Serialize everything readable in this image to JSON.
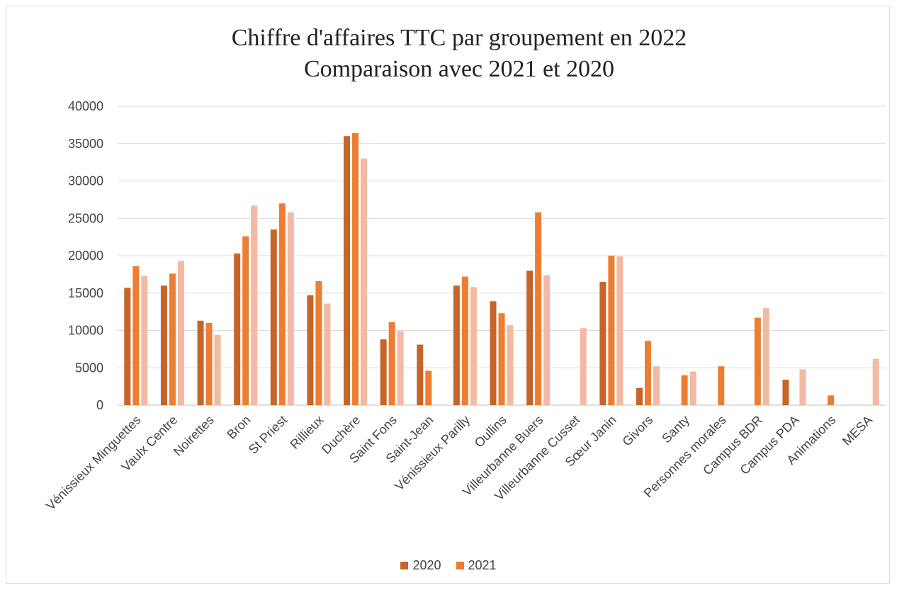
{
  "chart_data": {
    "type": "bar",
    "title_line1": "Chiffre d'affaires TTC par groupement en 2022",
    "title_line2": "Comparaison avec 2021 et 2020",
    "ylim": [
      0,
      40000
    ],
    "yticks": [
      0,
      5000,
      10000,
      15000,
      20000,
      25000,
      30000,
      35000,
      40000
    ],
    "grid": true,
    "legend_position": "bottom",
    "categories": [
      "Vénissieux Minguettes",
      "Vaulx Centre",
      "Noirettes",
      "Bron",
      "St Priest",
      "Rillieux",
      "Duchère",
      "Saint Fons",
      "Saint-Jean",
      "Vénissieux Parilly",
      "Oullins",
      "Villeurbanne Buers",
      "Villeurbanne Cusset",
      "Sœur Janin",
      "Givors",
      "Santy",
      "Personnes morales",
      "Campus BDR",
      "Campus PDA",
      "Animations",
      "MESA"
    ],
    "series": [
      {
        "name": "2020",
        "color": "#C5652A",
        "values": [
          15700,
          16000,
          11300,
          20300,
          23500,
          14700,
          36000,
          8800,
          8100,
          16000,
          13900,
          18000,
          0,
          16500,
          2300,
          0,
          0,
          0,
          3400,
          0,
          0
        ]
      },
      {
        "name": "2021",
        "color": "#ED7D31",
        "values": [
          18600,
          17600,
          11000,
          22600,
          27000,
          16600,
          36400,
          11100,
          4600,
          17200,
          12300,
          25800,
          0,
          20000,
          8600,
          4000,
          5200,
          11700,
          0,
          1300,
          0
        ]
      },
      {
        "name": "",
        "color": "#F4B9A3",
        "values": [
          17300,
          19300,
          9400,
          26700,
          25800,
          13600,
          33000,
          9900,
          0,
          15800,
          10700,
          17400,
          10300,
          19900,
          5200,
          4500,
          0,
          13000,
          4800,
          0,
          6200
        ]
      }
    ],
    "legend": [
      "2020",
      "2021"
    ]
  }
}
